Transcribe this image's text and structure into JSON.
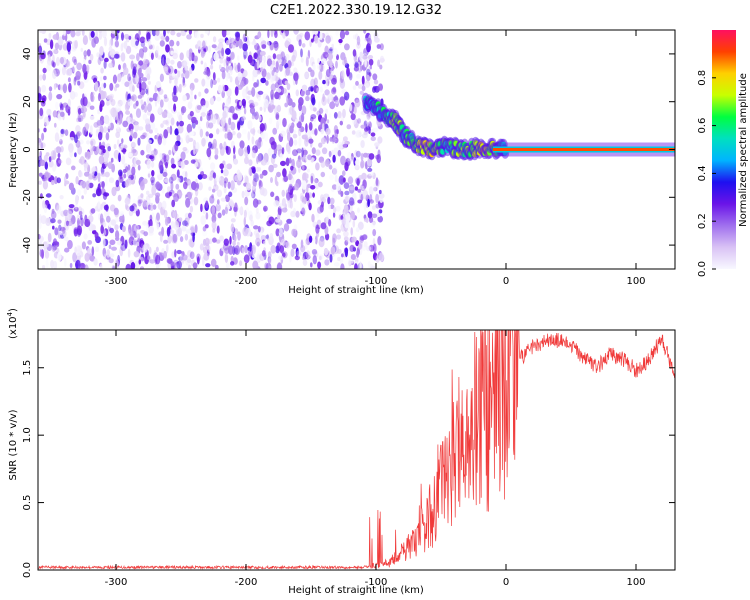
{
  "title": "C2E1.2022.330.19.12.G32",
  "chart_data": [
    {
      "type": "heatmap",
      "xlabel": "Height of straight line (km)",
      "ylabel": "Frequency (Hz)",
      "xlim": [
        -360,
        130
      ],
      "ylim": [
        -50,
        50
      ],
      "xticks": [
        -300,
        -200,
        -100,
        0,
        100
      ],
      "yticks": [
        -40,
        -20,
        0,
        20,
        40
      ],
      "colorbar": {
        "label": "Normalized spectral amplitude",
        "range": [
          0.0,
          1.0
        ],
        "ticks": [
          0.0,
          0.2,
          0.4,
          0.6,
          0.8
        ],
        "tick_labels": [
          "0.0",
          "0.2",
          "0.4",
          "0.6",
          "0.8"
        ],
        "colormap": [
          "#f8f8ff",
          "#d9c2f5",
          "#a070ee",
          "#6a14e8",
          "#1e10f0",
          "#00b4ff",
          "#00e0c0",
          "#00ff40",
          "#c8ff00",
          "#ffd000",
          "#ff4000",
          "#ff1060"
        ]
      },
      "features": {
        "noise_region_x": [
          -360,
          -95
        ],
        "noise_amplitude": [
          0.0,
          0.2
        ],
        "signal_track": [
          {
            "x": -108,
            "freq": 20,
            "amp": 0.5
          },
          {
            "x": -97,
            "freq": 16,
            "amp": 0.55
          },
          {
            "x": -85,
            "freq": 12,
            "amp": 0.65
          },
          {
            "x": -75,
            "freq": 4,
            "amp": 0.6
          },
          {
            "x": -60,
            "freq": 0,
            "amp": 0.75
          },
          {
            "x": -45,
            "freq": 1,
            "amp": 0.6
          },
          {
            "x": -30,
            "freq": 0,
            "amp": 0.65
          },
          {
            "x": -15,
            "freq": 1,
            "amp": 0.8
          },
          {
            "x": 0,
            "freq": 0,
            "amp": 0.5
          }
        ],
        "carrier_line": {
          "x_from": -10,
          "x_to": 130,
          "freq": 0,
          "amp": 0.9
        }
      }
    },
    {
      "type": "line",
      "xlabel": "Height of straight line (km)",
      "ylabel": "SNR (10 * v/v)",
      "y_exponent_label": "(x10",
      "y_exponent_power": "4",
      "y_exponent_close": ")",
      "xlim": [
        -360,
        130
      ],
      "ylim": [
        0,
        1.78
      ],
      "xticks": [
        -300,
        -200,
        -100,
        0,
        100
      ],
      "yticks": [
        0.0,
        0.5,
        1.0,
        1.5
      ],
      "ytick_labels": [
        "0.0",
        "0.5",
        "1.0",
        "1.5"
      ],
      "color": "#f03a3a",
      "series": [
        {
          "x": [
            -360,
            -300,
            -200,
            -110,
            -90,
            -70,
            -55,
            -45,
            -35,
            -25,
            -15,
            -5,
            0,
            10,
            20,
            30,
            40,
            50,
            60,
            70,
            80,
            90,
            100,
            110,
            120,
            130
          ],
          "y": [
            0.02,
            0.02,
            0.02,
            0.02,
            0.05,
            0.2,
            0.45,
            0.7,
            0.9,
            1.1,
            1.2,
            1.35,
            1.4,
            1.55,
            1.66,
            1.7,
            1.7,
            1.66,
            1.58,
            1.5,
            1.6,
            1.56,
            1.48,
            1.56,
            1.72,
            1.45
          ]
        }
      ]
    }
  ]
}
